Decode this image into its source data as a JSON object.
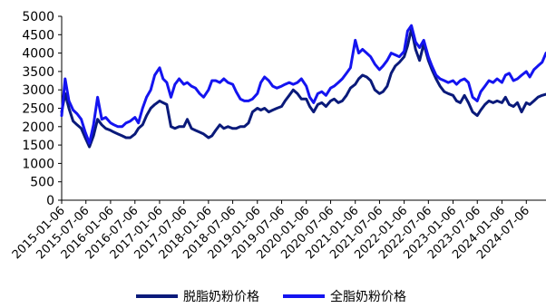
{
  "chart_data": {
    "type": "line",
    "title": "",
    "xlabel": "",
    "ylabel": "",
    "ylim": [
      0,
      5000
    ],
    "yticks": [
      0,
      500,
      1000,
      1500,
      2000,
      2500,
      3000,
      3500,
      4000,
      4500,
      5000
    ],
    "xtick_labels": [
      "2015-01-06",
      "2015-07-06",
      "2016-01-06",
      "2016-07-06",
      "2017-01-06",
      "2017-07-06",
      "2018-01-06",
      "2018-07-06",
      "2019-01-06",
      "2019-07-06",
      "2020-01-06",
      "2020-07-06",
      "2021-01-06",
      "2021-07-06",
      "2022-01-06",
      "2022-07-06",
      "2023-01-06",
      "2023-07-06",
      "2024-01-06",
      "2024-07-06"
    ],
    "x_range": [
      "2015-01-06",
      "2024-11-30"
    ],
    "grid": false,
    "legend_position": "bottom",
    "series": [
      {
        "name": "脱脂奶粉价格",
        "color": "#0a1a7a",
        "points": [
          [
            "2015-01-06",
            2400
          ],
          [
            "2015-02-01",
            2900
          ],
          [
            "2015-03-01",
            2500
          ],
          [
            "2015-04-01",
            2150
          ],
          [
            "2015-05-01",
            2050
          ],
          [
            "2015-06-01",
            1950
          ],
          [
            "2015-07-01",
            1700
          ],
          [
            "2015-08-01",
            1450
          ],
          [
            "2015-09-01",
            1750
          ],
          [
            "2015-10-01",
            2200
          ],
          [
            "2015-11-01",
            2050
          ],
          [
            "2015-12-01",
            1950
          ],
          [
            "2016-01-06",
            1900
          ],
          [
            "2016-02-01",
            1850
          ],
          [
            "2016-03-01",
            1800
          ],
          [
            "2016-04-01",
            1750
          ],
          [
            "2016-05-01",
            1700
          ],
          [
            "2016-06-01",
            1700
          ],
          [
            "2016-07-06",
            1800
          ],
          [
            "2016-08-01",
            1950
          ],
          [
            "2016-09-01",
            2050
          ],
          [
            "2016-10-01",
            2300
          ],
          [
            "2016-11-01",
            2500
          ],
          [
            "2016-12-01",
            2600
          ],
          [
            "2017-01-06",
            2700
          ],
          [
            "2017-02-01",
            2650
          ],
          [
            "2017-03-01",
            2600
          ],
          [
            "2017-04-01",
            2000
          ],
          [
            "2017-05-01",
            1950
          ],
          [
            "2017-06-01",
            2000
          ],
          [
            "2017-07-06",
            2000
          ],
          [
            "2017-08-01",
            2200
          ],
          [
            "2017-09-01",
            1950
          ],
          [
            "2017-10-01",
            1900
          ],
          [
            "2017-11-01",
            1850
          ],
          [
            "2017-12-01",
            1800
          ],
          [
            "2018-01-06",
            1700
          ],
          [
            "2018-02-01",
            1750
          ],
          [
            "2018-03-01",
            1900
          ],
          [
            "2018-04-01",
            2050
          ],
          [
            "2018-05-01",
            1950
          ],
          [
            "2018-06-01",
            2000
          ],
          [
            "2018-07-06",
            1950
          ],
          [
            "2018-08-01",
            1950
          ],
          [
            "2018-09-01",
            2000
          ],
          [
            "2018-10-01",
            2000
          ],
          [
            "2018-11-01",
            2100
          ],
          [
            "2018-12-01",
            2400
          ],
          [
            "2019-01-06",
            2500
          ],
          [
            "2019-02-01",
            2450
          ],
          [
            "2019-03-01",
            2500
          ],
          [
            "2019-04-01",
            2400
          ],
          [
            "2019-05-01",
            2450
          ],
          [
            "2019-06-01",
            2500
          ],
          [
            "2019-07-06",
            2550
          ],
          [
            "2019-08-01",
            2700
          ],
          [
            "2019-09-01",
            2850
          ],
          [
            "2019-10-01",
            3000
          ],
          [
            "2019-11-01",
            2900
          ],
          [
            "2019-12-01",
            2750
          ],
          [
            "2020-01-06",
            2750
          ],
          [
            "2020-02-01",
            2550
          ],
          [
            "2020-03-01",
            2400
          ],
          [
            "2020-04-01",
            2600
          ],
          [
            "2020-05-01",
            2650
          ],
          [
            "2020-06-01",
            2550
          ],
          [
            "2020-07-06",
            2700
          ],
          [
            "2020-08-01",
            2750
          ],
          [
            "2020-09-01",
            2650
          ],
          [
            "2020-10-01",
            2700
          ],
          [
            "2020-11-01",
            2850
          ],
          [
            "2020-12-01",
            3050
          ],
          [
            "2021-01-06",
            3150
          ],
          [
            "2021-02-01",
            3300
          ],
          [
            "2021-03-01",
            3400
          ],
          [
            "2021-04-01",
            3350
          ],
          [
            "2021-05-01",
            3250
          ],
          [
            "2021-06-01",
            3000
          ],
          [
            "2021-07-06",
            2900
          ],
          [
            "2021-08-01",
            2950
          ],
          [
            "2021-09-01",
            3100
          ],
          [
            "2021-10-01",
            3450
          ],
          [
            "2021-11-01",
            3650
          ],
          [
            "2021-12-01",
            3750
          ],
          [
            "2022-01-06",
            3900
          ],
          [
            "2022-02-01",
            4200
          ],
          [
            "2022-03-01",
            4650
          ],
          [
            "2022-04-01",
            4100
          ],
          [
            "2022-05-01",
            3800
          ],
          [
            "2022-06-01",
            4250
          ],
          [
            "2022-07-06",
            3800
          ],
          [
            "2022-08-01",
            3550
          ],
          [
            "2022-09-01",
            3300
          ],
          [
            "2022-10-01",
            3100
          ],
          [
            "2022-11-01",
            2950
          ],
          [
            "2022-12-01",
            2900
          ],
          [
            "2023-01-06",
            2850
          ],
          [
            "2023-02-01",
            2700
          ],
          [
            "2023-03-01",
            2650
          ],
          [
            "2023-04-01",
            2850
          ],
          [
            "2023-05-01",
            2650
          ],
          [
            "2023-06-01",
            2400
          ],
          [
            "2023-07-06",
            2300
          ],
          [
            "2023-08-01",
            2450
          ],
          [
            "2023-09-01",
            2600
          ],
          [
            "2023-10-01",
            2700
          ],
          [
            "2023-11-01",
            2650
          ],
          [
            "2023-12-01",
            2700
          ],
          [
            "2024-01-06",
            2650
          ],
          [
            "2024-02-01",
            2800
          ],
          [
            "2024-03-01",
            2600
          ],
          [
            "2024-04-01",
            2550
          ],
          [
            "2024-05-01",
            2650
          ],
          [
            "2024-06-01",
            2400
          ],
          [
            "2024-07-06",
            2650
          ],
          [
            "2024-08-01",
            2600
          ],
          [
            "2024-09-01",
            2700
          ],
          [
            "2024-10-01",
            2800
          ],
          [
            "2024-11-01",
            2850
          ],
          [
            "2024-11-30",
            2880
          ]
        ]
      },
      {
        "name": "全脂奶粉价格",
        "color": "#1414f0",
        "points": [
          [
            "2015-01-06",
            2300
          ],
          [
            "2015-02-01",
            3300
          ],
          [
            "2015-03-01",
            2700
          ],
          [
            "2015-04-01",
            2450
          ],
          [
            "2015-05-01",
            2350
          ],
          [
            "2015-06-01",
            2200
          ],
          [
            "2015-07-01",
            1850
          ],
          [
            "2015-08-01",
            1550
          ],
          [
            "2015-09-01",
            2050
          ],
          [
            "2015-10-01",
            2800
          ],
          [
            "2015-11-01",
            2200
          ],
          [
            "2015-12-01",
            2250
          ],
          [
            "2016-01-06",
            2100
          ],
          [
            "2016-02-01",
            2050
          ],
          [
            "2016-03-01",
            2000
          ],
          [
            "2016-04-01",
            2000
          ],
          [
            "2016-05-01",
            2100
          ],
          [
            "2016-06-01",
            2150
          ],
          [
            "2016-07-06",
            2250
          ],
          [
            "2016-08-01",
            2100
          ],
          [
            "2016-09-01",
            2500
          ],
          [
            "2016-10-01",
            2800
          ],
          [
            "2016-11-01",
            3000
          ],
          [
            "2016-12-01",
            3400
          ],
          [
            "2017-01-06",
            3600
          ],
          [
            "2017-02-01",
            3300
          ],
          [
            "2017-03-01",
            3200
          ],
          [
            "2017-04-01",
            2800
          ],
          [
            "2017-05-01",
            3150
          ],
          [
            "2017-06-01",
            3300
          ],
          [
            "2017-07-06",
            3150
          ],
          [
            "2017-08-01",
            3200
          ],
          [
            "2017-09-01",
            3100
          ],
          [
            "2017-10-01",
            3050
          ],
          [
            "2017-11-01",
            2900
          ],
          [
            "2017-12-01",
            2800
          ],
          [
            "2018-01-06",
            3000
          ],
          [
            "2018-02-01",
            3250
          ],
          [
            "2018-03-01",
            3250
          ],
          [
            "2018-04-01",
            3200
          ],
          [
            "2018-05-01",
            3300
          ],
          [
            "2018-06-01",
            3200
          ],
          [
            "2018-07-06",
            3150
          ],
          [
            "2018-08-01",
            2950
          ],
          [
            "2018-09-01",
            2750
          ],
          [
            "2018-10-01",
            2700
          ],
          [
            "2018-11-01",
            2700
          ],
          [
            "2018-12-01",
            2750
          ],
          [
            "2019-01-06",
            2900
          ],
          [
            "2019-02-01",
            3200
          ],
          [
            "2019-03-01",
            3350
          ],
          [
            "2019-04-01",
            3250
          ],
          [
            "2019-05-01",
            3100
          ],
          [
            "2019-06-01",
            3050
          ],
          [
            "2019-07-06",
            3100
          ],
          [
            "2019-08-01",
            3150
          ],
          [
            "2019-09-01",
            3200
          ],
          [
            "2019-10-01",
            3150
          ],
          [
            "2019-11-01",
            3200
          ],
          [
            "2019-12-01",
            3300
          ],
          [
            "2020-01-06",
            3100
          ],
          [
            "2020-02-01",
            2800
          ],
          [
            "2020-03-01",
            2650
          ],
          [
            "2020-04-01",
            2900
          ],
          [
            "2020-05-01",
            2950
          ],
          [
            "2020-06-01",
            2850
          ],
          [
            "2020-07-06",
            3050
          ],
          [
            "2020-08-01",
            3100
          ],
          [
            "2020-09-01",
            3200
          ],
          [
            "2020-10-01",
            3300
          ],
          [
            "2020-11-01",
            3450
          ],
          [
            "2020-12-01",
            3600
          ],
          [
            "2021-01-06",
            4350
          ],
          [
            "2021-02-01",
            4000
          ],
          [
            "2021-03-01",
            4100
          ],
          [
            "2021-04-01",
            4000
          ],
          [
            "2021-05-01",
            3900
          ],
          [
            "2021-06-01",
            3700
          ],
          [
            "2021-07-06",
            3550
          ],
          [
            "2021-08-01",
            3650
          ],
          [
            "2021-09-01",
            3800
          ],
          [
            "2021-10-01",
            4000
          ],
          [
            "2021-11-01",
            3950
          ],
          [
            "2021-12-01",
            3900
          ],
          [
            "2022-01-06",
            4050
          ],
          [
            "2022-02-01",
            4600
          ],
          [
            "2022-03-01",
            4750
          ],
          [
            "2022-04-01",
            4300
          ],
          [
            "2022-05-01",
            4150
          ],
          [
            "2022-06-01",
            4350
          ],
          [
            "2022-07-06",
            3900
          ],
          [
            "2022-08-01",
            3650
          ],
          [
            "2022-09-01",
            3400
          ],
          [
            "2022-10-01",
            3300
          ],
          [
            "2022-11-01",
            3250
          ],
          [
            "2022-12-01",
            3200
          ],
          [
            "2023-01-06",
            3250
          ],
          [
            "2023-02-01",
            3150
          ],
          [
            "2023-03-01",
            3250
          ],
          [
            "2023-04-01",
            3300
          ],
          [
            "2023-05-01",
            3200
          ],
          [
            "2023-06-01",
            2800
          ],
          [
            "2023-07-06",
            2700
          ],
          [
            "2023-08-01",
            2950
          ],
          [
            "2023-09-01",
            3100
          ],
          [
            "2023-10-01",
            3250
          ],
          [
            "2023-11-01",
            3200
          ],
          [
            "2023-12-01",
            3300
          ],
          [
            "2024-01-06",
            3200
          ],
          [
            "2024-02-01",
            3400
          ],
          [
            "2024-03-01",
            3450
          ],
          [
            "2024-04-01",
            3250
          ],
          [
            "2024-05-01",
            3300
          ],
          [
            "2024-06-01",
            3400
          ],
          [
            "2024-07-06",
            3500
          ],
          [
            "2024-08-01",
            3350
          ],
          [
            "2024-09-01",
            3550
          ],
          [
            "2024-10-01",
            3650
          ],
          [
            "2024-11-01",
            3750
          ],
          [
            "2024-11-30",
            4000
          ]
        ]
      }
    ]
  }
}
